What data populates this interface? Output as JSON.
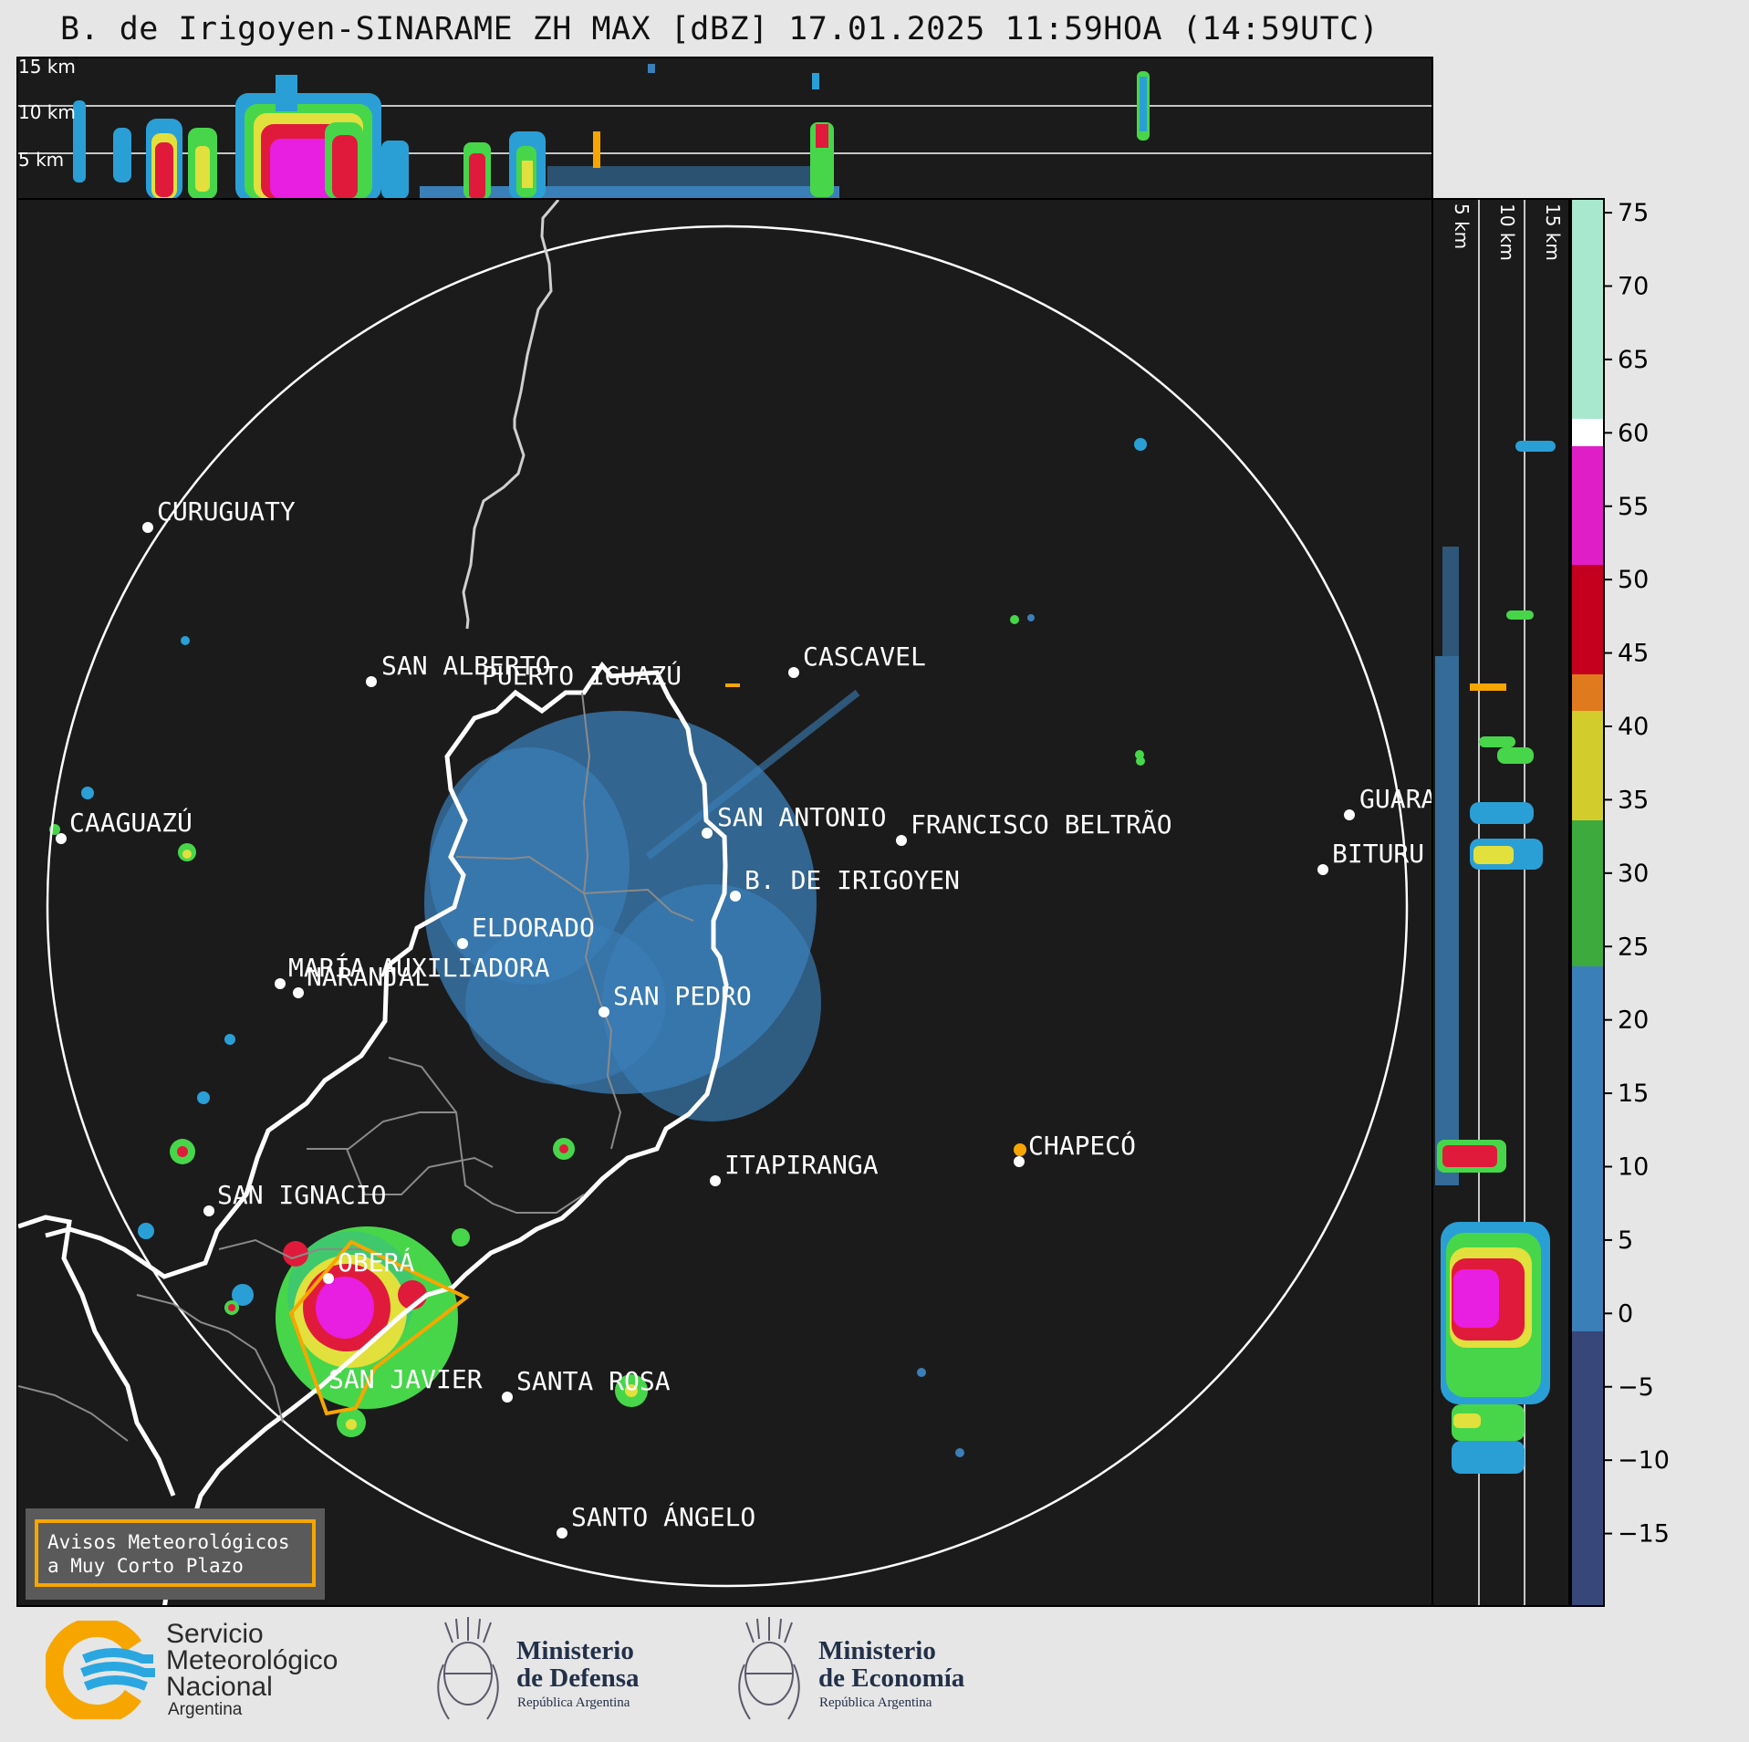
{
  "title": "B. de Irigoyen-SINARAME ZH MAX [dBZ] 17.01.2025 11:59HOA (14:59UTC)",
  "top_panel": {
    "altitude_labels": [
      "15 km",
      "10 km",
      "5 km"
    ]
  },
  "side_panel": {
    "altitude_labels": [
      "5 km",
      "10 km",
      "15 km"
    ]
  },
  "cities": [
    {
      "name": "CURUGUATY"
    },
    {
      "name": "SAN ALBERTO"
    },
    {
      "name": "CASCAVEL"
    },
    {
      "name": "CAAGUAZÚ"
    },
    {
      "name": "GUARA"
    },
    {
      "name": "PUERTO IGUAZÚ"
    },
    {
      "name": "NARANJAL"
    },
    {
      "name": "SAN ANTONIO"
    },
    {
      "name": "FRANCISCO BELTRÃO"
    },
    {
      "name": "BITURU"
    },
    {
      "name": "B. DE IRIGOYEN"
    },
    {
      "name": "ELDORADO"
    },
    {
      "name": "MARÍA AUXILIADORA"
    },
    {
      "name": "SAN PEDRO"
    },
    {
      "name": "CHAPECÓ"
    },
    {
      "name": "ITAPIRANGA"
    },
    {
      "name": "SAN IGNACIO"
    },
    {
      "name": "OBERÁ"
    },
    {
      "name": "SAN JAVIER"
    },
    {
      "name": "SANTA ROSA"
    },
    {
      "name": "SANTO ÁNGELO"
    }
  ],
  "colorbar": {
    "unit": "dBZ",
    "ticks": [
      "75",
      "70",
      "65",
      "60",
      "55",
      "50",
      "45",
      "40",
      "35",
      "30",
      "25",
      "20",
      "15",
      "10",
      "5",
      "0",
      "−5",
      "−10",
      "−15"
    ],
    "range": [
      -20,
      76
    ]
  },
  "legend": {
    "line1": "Avisos Meteorológicos",
    "line2": "a Muy Corto Plazo",
    "border_color": "#f7a600"
  },
  "logos": {
    "smn": {
      "line1": "Servicio",
      "line2": "Meteorológico",
      "line3": "Nacional",
      "line4": "Argentina"
    },
    "defensa": {
      "line1": "Ministerio",
      "line2": "de Defensa",
      "line3": "República Argentina"
    },
    "economia": {
      "line1": "Ministerio",
      "line2": "de Economía",
      "line3": "República Argentina"
    }
  },
  "colors": {
    "background": "#1b1b1b",
    "warning_polygon": "#f7a600",
    "radar_echo": "#3b7fb8"
  }
}
